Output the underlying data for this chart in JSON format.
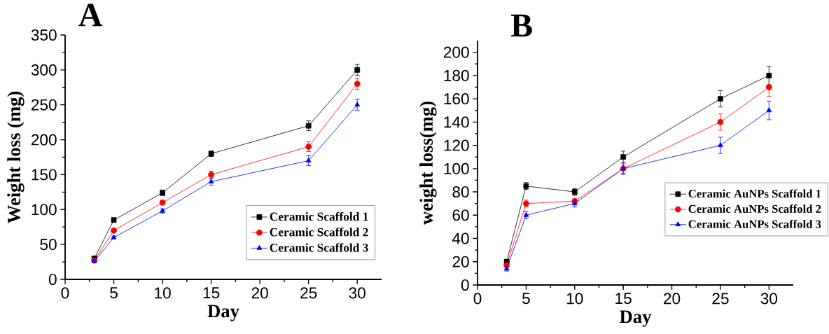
{
  "chart_data": [
    {
      "type": "line",
      "title": "A",
      "xlabel": "Day",
      "ylabel": "Weight loss (mg)",
      "x": [
        3,
        5,
        10,
        15,
        25,
        30
      ],
      "xlim": [
        0,
        32.5
      ],
      "ylim": [
        0,
        350
      ],
      "xticks": [
        0,
        5,
        10,
        15,
        20,
        25,
        30
      ],
      "yticks": [
        0,
        50,
        100,
        150,
        200,
        250,
        300,
        350
      ],
      "legend": "bottom right",
      "grid": false,
      "line_style": "solid",
      "series": [
        {
          "name": "Ceramic Scaffold 1",
          "color": "#000000",
          "marker": "square",
          "values": [
            30,
            85,
            124,
            180,
            220,
            300
          ],
          "errors": [
            3,
            2,
            4,
            4,
            7,
            8
          ]
        },
        {
          "name": "Ceramic Scaffold 2",
          "color": "#ff0000",
          "marker": "circle",
          "values": [
            27,
            70,
            110,
            150,
            190,
            280
          ],
          "errors": [
            2,
            2,
            3,
            5,
            7,
            8
          ]
        },
        {
          "name": "Ceramic Scaffold 3",
          "color": "#0000ff",
          "marker": "triangle",
          "values": [
            26,
            60,
            98,
            140,
            170,
            250
          ],
          "errors": [
            null,
            2,
            3,
            5,
            7,
            8
          ]
        }
      ]
    },
    {
      "type": "line",
      "title": "B",
      "xlabel": "Day",
      "ylabel": "weight loss(mg)",
      "x": [
        3,
        5,
        10,
        15,
        25,
        30
      ],
      "xlim": [
        0,
        32.5
      ],
      "ylim": [
        0,
        210
      ],
      "xticks": [
        0,
        5,
        10,
        15,
        20,
        25,
        30
      ],
      "yticks": [
        0,
        20,
        40,
        60,
        80,
        100,
        120,
        140,
        160,
        180,
        200
      ],
      "legend": "right",
      "grid": false,
      "line_style": "solid",
      "series": [
        {
          "name": "Ceramic AuNPs Scaffold 1",
          "color": "#000000",
          "marker": "square",
          "values": [
            20,
            85,
            80,
            110,
            160,
            180
          ],
          "errors": [
            2,
            3,
            3,
            5,
            7,
            8
          ]
        },
        {
          "name": "Ceramic AuNPs Scaffold 2",
          "color": "#ff0000",
          "marker": "circle",
          "values": [
            17,
            70,
            72,
            100,
            140,
            170
          ],
          "errors": [
            2,
            3,
            2,
            4,
            7,
            8
          ]
        },
        {
          "name": "Ceramic AuNPs Scaffold 3",
          "color": "#0000ff",
          "marker": "triangle",
          "values": [
            14,
            60,
            70,
            100,
            120,
            150
          ],
          "errors": [
            2,
            3,
            3,
            5,
            7,
            8
          ]
        }
      ]
    }
  ]
}
